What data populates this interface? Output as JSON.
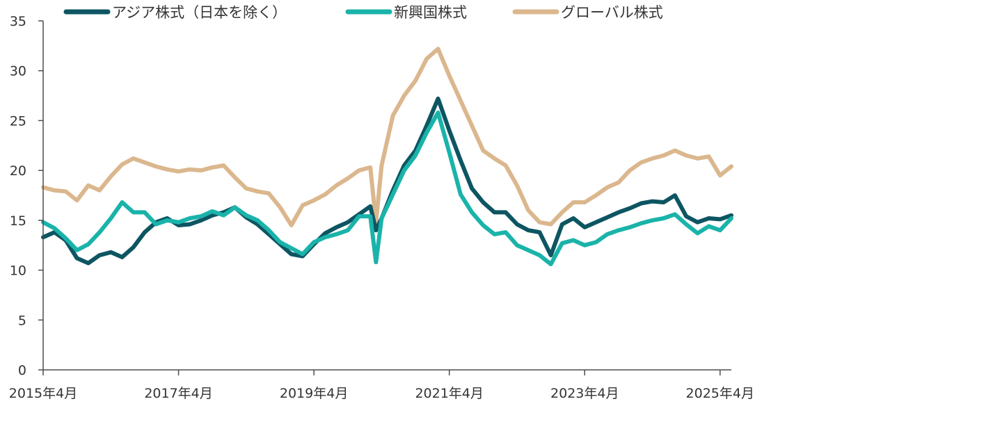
{
  "chart_data": {
    "type": "line",
    "title": "",
    "xlabel": "",
    "ylabel": "",
    "ylim": [
      0,
      35
    ],
    "yticks": [
      0,
      5,
      10,
      15,
      20,
      25,
      30,
      35
    ],
    "xlim": [
      "2015-04",
      "2025-06"
    ],
    "xticks": [
      {
        "date": "2015-04",
        "label": "2015年4月"
      },
      {
        "date": "2017-04",
        "label": "2017年4月"
      },
      {
        "date": "2019-04",
        "label": "2019年4月"
      },
      {
        "date": "2021-04",
        "label": "2021年4月"
      },
      {
        "date": "2023-04",
        "label": "2023年4月"
      },
      {
        "date": "2025-04",
        "label": "2025年4月"
      }
    ],
    "grid": false,
    "legend": "top",
    "x": [
      "2015-04",
      "2015-06",
      "2015-08",
      "2015-10",
      "2015-12",
      "2016-02",
      "2016-04",
      "2016-06",
      "2016-08",
      "2016-10",
      "2016-12",
      "2017-02",
      "2017-04",
      "2017-06",
      "2017-08",
      "2017-10",
      "2017-12",
      "2018-02",
      "2018-04",
      "2018-06",
      "2018-08",
      "2018-10",
      "2018-12",
      "2019-02",
      "2019-04",
      "2019-06",
      "2019-08",
      "2019-10",
      "2019-12",
      "2020-02",
      "2020-03",
      "2020-04",
      "2020-06",
      "2020-08",
      "2020-10",
      "2020-12",
      "2021-02",
      "2021-04",
      "2021-06",
      "2021-08",
      "2021-10",
      "2021-12",
      "2022-02",
      "2022-04",
      "2022-06",
      "2022-08",
      "2022-10",
      "2022-12",
      "2023-02",
      "2023-04",
      "2023-06",
      "2023-08",
      "2023-10",
      "2023-12",
      "2024-02",
      "2024-04",
      "2024-06",
      "2024-08",
      "2024-10",
      "2024-12",
      "2025-02",
      "2025-04",
      "2025-06"
    ],
    "series": [
      {
        "name": "アジア株式（日本を除く）",
        "color": "#0d5562",
        "values": [
          13.3,
          13.8,
          13.0,
          11.2,
          10.7,
          11.5,
          11.8,
          11.3,
          12.3,
          13.8,
          14.8,
          15.2,
          14.5,
          14.6,
          15.0,
          15.5,
          15.8,
          16.3,
          15.3,
          14.6,
          13.6,
          12.6,
          11.6,
          11.4,
          12.6,
          13.7,
          14.3,
          14.8,
          15.6,
          16.4,
          14.0,
          15.2,
          18.0,
          20.5,
          22.0,
          24.5,
          27.2,
          24.0,
          21.0,
          18.2,
          16.8,
          15.8,
          15.8,
          14.6,
          14.0,
          13.8,
          11.5,
          14.6,
          15.2,
          14.3,
          14.8,
          15.3,
          15.8,
          16.2,
          16.7,
          16.9,
          16.8,
          17.5,
          15.4,
          14.8,
          15.2,
          15.1,
          15.5
        ]
      },
      {
        "name": "新興国株式",
        "color": "#1ab3aa",
        "values": [
          14.8,
          14.2,
          13.2,
          12.0,
          12.6,
          13.8,
          15.2,
          16.8,
          15.8,
          15.8,
          14.6,
          15.0,
          14.8,
          15.2,
          15.4,
          15.9,
          15.5,
          16.3,
          15.5,
          15.0,
          14.0,
          12.8,
          12.2,
          11.6,
          12.8,
          13.3,
          13.6,
          14.0,
          15.4,
          15.4,
          10.8,
          15.2,
          17.6,
          20.0,
          21.5,
          23.8,
          25.8,
          21.8,
          17.6,
          15.8,
          14.5,
          13.6,
          13.8,
          12.5,
          12.0,
          11.5,
          10.6,
          12.7,
          13.0,
          12.5,
          12.8,
          13.6,
          14.0,
          14.3,
          14.7,
          15.0,
          15.2,
          15.6,
          14.6,
          13.7,
          14.4,
          14.0,
          15.2
        ]
      },
      {
        "name": "グローバル株式",
        "color": "#dbb78e",
        "values": [
          18.3,
          18.0,
          17.9,
          17.0,
          18.5,
          18.0,
          19.4,
          20.6,
          21.2,
          20.8,
          20.4,
          20.1,
          19.9,
          20.1,
          20.0,
          20.3,
          20.5,
          19.3,
          18.2,
          17.9,
          17.7,
          16.3,
          14.5,
          16.5,
          17.0,
          17.6,
          18.5,
          19.2,
          20.0,
          20.3,
          14.8,
          20.5,
          25.5,
          27.5,
          29.0,
          31.2,
          32.2,
          29.5,
          27.0,
          24.5,
          22.0,
          21.2,
          20.5,
          18.5,
          16.0,
          14.8,
          14.6,
          15.8,
          16.8,
          16.8,
          17.5,
          18.3,
          18.8,
          20.0,
          20.8,
          21.2,
          21.5,
          22.0,
          21.5,
          21.2,
          21.4,
          19.5,
          20.4
        ]
      }
    ]
  }
}
